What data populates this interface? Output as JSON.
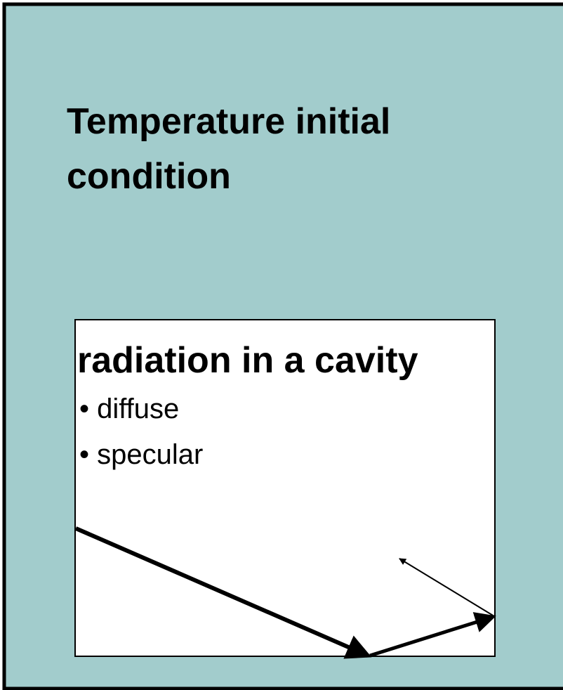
{
  "title": "Temperature initial condition",
  "box": {
    "heading": "radiation in a cavity",
    "bullets": [
      "diffuse",
      "specular"
    ]
  }
}
